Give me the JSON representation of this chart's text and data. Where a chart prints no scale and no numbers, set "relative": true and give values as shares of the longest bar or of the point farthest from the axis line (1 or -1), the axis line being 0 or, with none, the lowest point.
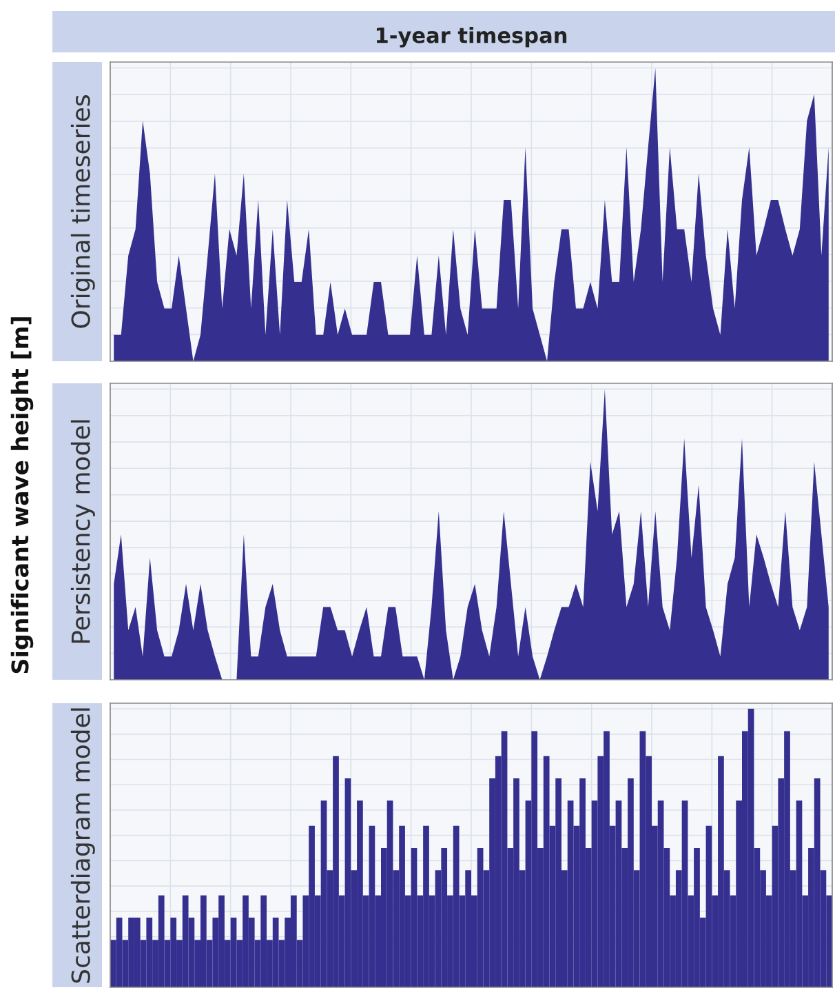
{
  "chart_data": [
    {
      "type": "area",
      "title": "1-year timespan",
      "ylabel": "Original timeseries",
      "annotations": [
        "Significant wave height [m]"
      ],
      "relative": true,
      "grid": true,
      "tick_labels": false,
      "categories": [
        null,
        null,
        null,
        null,
        null,
        null,
        null,
        null,
        null,
        null,
        null,
        null,
        null,
        null,
        null,
        null,
        null,
        null,
        null,
        null,
        null,
        null,
        null,
        null,
        null,
        null,
        null,
        null,
        null,
        null,
        null,
        null,
        null,
        null,
        null,
        null,
        null,
        null,
        null,
        null,
        null,
        null,
        null,
        null,
        null,
        null,
        null,
        null,
        null,
        null,
        null,
        null,
        null,
        null,
        null,
        null,
        null,
        null,
        null,
        null,
        null,
        null,
        null,
        null,
        null,
        null,
        null,
        null,
        null,
        null,
        null,
        null,
        null,
        null,
        null,
        null,
        null,
        null,
        null,
        null,
        null,
        null,
        null,
        null,
        null,
        null,
        null,
        null,
        null,
        null,
        null,
        null,
        null,
        null,
        null,
        null,
        null,
        null,
        null,
        null
      ],
      "series": [
        {
          "color": "#35308f",
          "values": [
            0.09,
            0.09,
            0.36,
            0.45,
            0.82,
            0.64,
            0.27,
            0.18,
            0.18,
            0.36,
            0.18,
            0,
            0.09,
            0.36,
            0.64,
            0.18,
            0.45,
            0.36,
            0.64,
            0.18,
            0.55,
            0.09,
            0.45,
            0.09,
            0.55,
            0.27,
            0.27,
            0.45,
            0.09,
            0.09,
            0.27,
            0.09,
            0.18,
            0.09,
            0.09,
            0.09,
            0.27,
            0.27,
            0.09,
            0.09,
            0.09,
            0.09,
            0.36,
            0.09,
            0.09,
            0.36,
            0.09,
            0.45,
            0.18,
            0.09,
            0.45,
            0.18,
            0.18,
            0.18,
            0.55,
            0.55,
            0.18,
            0.73,
            0.18,
            0.09,
            0,
            0.27,
            0.45,
            0.45,
            0.18,
            0.18,
            0.27,
            0.18,
            0.55,
            0.27,
            0.27,
            0.73,
            0.27,
            0.45,
            0.73,
            1,
            0.27,
            0.73,
            0.45,
            0.45,
            0.27,
            0.64,
            0.36,
            0.18,
            0.09,
            0.45,
            0.18,
            0.55,
            0.73,
            0.36,
            0.45,
            0.55,
            0.55,
            0.45,
            0.36,
            0.45,
            0.82,
            0.91,
            0.36,
            0.73
          ]
        }
      ]
    },
    {
      "type": "area",
      "ylabel": "Persistency model",
      "relative": true,
      "grid": true,
      "tick_labels": false,
      "categories": [
        null,
        null,
        null,
        null,
        null,
        null,
        null,
        null,
        null,
        null,
        null,
        null,
        null,
        null,
        null,
        null,
        null,
        null,
        null,
        null,
        null,
        null,
        null,
        null,
        null,
        null,
        null,
        null,
        null,
        null,
        null,
        null,
        null,
        null,
        null,
        null,
        null,
        null,
        null,
        null,
        null,
        null,
        null,
        null,
        null,
        null,
        null,
        null,
        null,
        null,
        null,
        null,
        null,
        null,
        null,
        null,
        null,
        null,
        null,
        null,
        null,
        null,
        null,
        null,
        null,
        null,
        null,
        null,
        null,
        null,
        null,
        null,
        null,
        null,
        null,
        null,
        null,
        null,
        null,
        null,
        null,
        null,
        null,
        null,
        null,
        null,
        null,
        null,
        null,
        null,
        null,
        null,
        null,
        null,
        null,
        null,
        null,
        null,
        null,
        null
      ],
      "series": [
        {
          "color": "#35308f",
          "values": [
            0.33,
            0.5,
            0.17,
            0.25,
            0.08,
            0.42,
            0.17,
            0.08,
            0.08,
            0.17,
            0.33,
            0.17,
            0.33,
            0.17,
            0.08,
            0,
            0,
            0,
            0.5,
            0.08,
            0.08,
            0.25,
            0.33,
            0.17,
            0.08,
            0.08,
            0.08,
            0.08,
            0.08,
            0.25,
            0.25,
            0.17,
            0.17,
            0.08,
            0.17,
            0.25,
            0.08,
            0.08,
            0.25,
            0.25,
            0.08,
            0.08,
            0.08,
            0,
            0.25,
            0.58,
            0.17,
            0,
            0.08,
            0.25,
            0.33,
            0.17,
            0.08,
            0.25,
            0.58,
            0.33,
            0.08,
            0.25,
            0.08,
            0,
            0.08,
            0.17,
            0.25,
            0.25,
            0.33,
            0.25,
            0.75,
            0.58,
            1,
            0.5,
            0.58,
            0.25,
            0.33,
            0.58,
            0.25,
            0.58,
            0.25,
            0.17,
            0.42,
            0.83,
            0.42,
            0.67,
            0.25,
            0.17,
            0.08,
            0.33,
            0.42,
            0.83,
            0.25,
            0.5,
            0.42,
            0.33,
            0.25,
            0.58,
            0.25,
            0.17,
            0.25,
            0.75,
            0.5,
            0.25
          ]
        }
      ]
    },
    {
      "type": "bar",
      "ylabel": "Scatterdiagram model",
      "relative": true,
      "grid": true,
      "tick_labels": false,
      "categories": [
        null,
        null,
        null,
        null,
        null,
        null,
        null,
        null,
        null,
        null,
        null,
        null,
        null,
        null,
        null,
        null,
        null,
        null,
        null,
        null,
        null,
        null,
        null,
        null,
        null,
        null,
        null,
        null,
        null,
        null,
        null,
        null,
        null,
        null,
        null,
        null,
        null,
        null,
        null,
        null,
        null,
        null,
        null,
        null,
        null,
        null,
        null,
        null,
        null,
        null,
        null,
        null,
        null,
        null,
        null,
        null,
        null,
        null,
        null,
        null,
        null,
        null,
        null,
        null,
        null,
        null,
        null,
        null,
        null,
        null,
        null,
        null,
        null,
        null,
        null,
        null,
        null,
        null,
        null,
        null,
        null,
        null,
        null,
        null,
        null,
        null,
        null,
        null,
        null,
        null,
        null,
        null,
        null,
        null,
        null,
        null,
        null,
        null,
        null,
        null,
        null,
        null,
        null,
        null,
        null,
        null,
        null,
        null,
        null,
        null,
        null,
        null,
        null,
        null,
        null,
        null,
        null,
        null,
        null,
        null
      ],
      "series": [
        {
          "color": "#35308f",
          "values": [
            0.17,
            0.25,
            0.17,
            0.25,
            0.25,
            0.17,
            0.25,
            0.17,
            0.33,
            0.17,
            0.25,
            0.17,
            0.33,
            0.25,
            0.17,
            0.33,
            0.17,
            0.25,
            0.33,
            0.17,
            0.25,
            0.17,
            0.33,
            0.25,
            0.17,
            0.33,
            0.17,
            0.25,
            0.17,
            0.25,
            0.33,
            0.17,
            0.33,
            0.58,
            0.33,
            0.67,
            0.42,
            0.83,
            0.33,
            0.75,
            0.42,
            0.67,
            0.33,
            0.58,
            0.33,
            0.5,
            0.67,
            0.42,
            0.58,
            0.33,
            0.5,
            0.33,
            0.58,
            0.33,
            0.42,
            0.5,
            0.33,
            0.58,
            0.33,
            0.42,
            0.33,
            0.5,
            0.42,
            0.75,
            0.83,
            0.92,
            0.5,
            0.75,
            0.42,
            0.67,
            0.92,
            0.5,
            0.83,
            0.58,
            0.75,
            0.42,
            0.67,
            0.58,
            0.75,
            0.5,
            0.67,
            0.83,
            0.92,
            0.58,
            0.67,
            0.5,
            0.75,
            0.42,
            0.92,
            0.83,
            0.58,
            0.67,
            0.5,
            0.33,
            0.42,
            0.67,
            0.33,
            0.5,
            0.25,
            0.58,
            0.33,
            0.83,
            0.42,
            0.33,
            0.67,
            0.92,
            1,
            0.5,
            0.42,
            0.33,
            0.58,
            0.75,
            0.92,
            0.42,
            0.67,
            0.33,
            0.5,
            0.75,
            0.42,
            0.33
          ]
        }
      ]
    }
  ]
}
